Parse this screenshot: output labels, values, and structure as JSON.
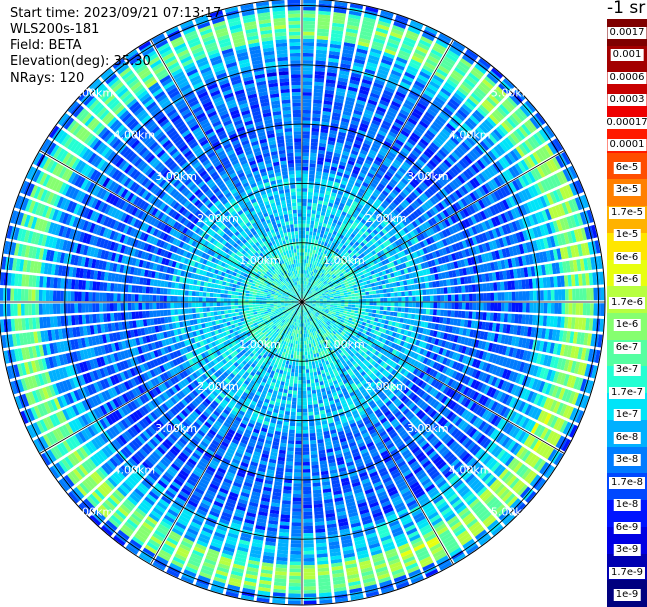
{
  "info": {
    "start_time": "Start time: 2023/09/21 07:13:17",
    "instrument": "WLS200s-181",
    "field": "Field: BETA",
    "elevation": "Elevation(deg): 35.30",
    "nrays": "NRays: 120"
  },
  "colorbar": {
    "unit": "-1 sr",
    "labels": [
      "0.0017",
      "0.001",
      "0.0006",
      "0.0003",
      "0.00017",
      "0.0001",
      "6e-5",
      "3e-5",
      "1.7e-5",
      "1e-5",
      "6e-6",
      "3e-6",
      "1.7e-6",
      "1e-6",
      "6e-7",
      "3e-7",
      "1.7e-7",
      "1e-7",
      "6e-8",
      "3e-8",
      "1.7e-8",
      "1e-8",
      "6e-9",
      "3e-9",
      "1.7e-9",
      "1e-9"
    ],
    "colors": [
      "#7f0000",
      "#a30000",
      "#c80000",
      "#ee0000",
      "#ff1a00",
      "#ff4d00",
      "#ff8000",
      "#ffb200",
      "#ffe600",
      "#e8ff0f",
      "#b7ff40",
      "#86ff70",
      "#55ffa1",
      "#24ffd3",
      "#00e4f8",
      "#00b0ff",
      "#007cff",
      "#0048ff",
      "#0014ff",
      "#0000e3",
      "#0000b1",
      "#00007f"
    ]
  },
  "ppi": {
    "range_labels": [
      "1.00km",
      "2.00km",
      "3.00km",
      "4.00km",
      "5.00km"
    ],
    "nrays": 120,
    "max_range_km": 5.1
  }
}
